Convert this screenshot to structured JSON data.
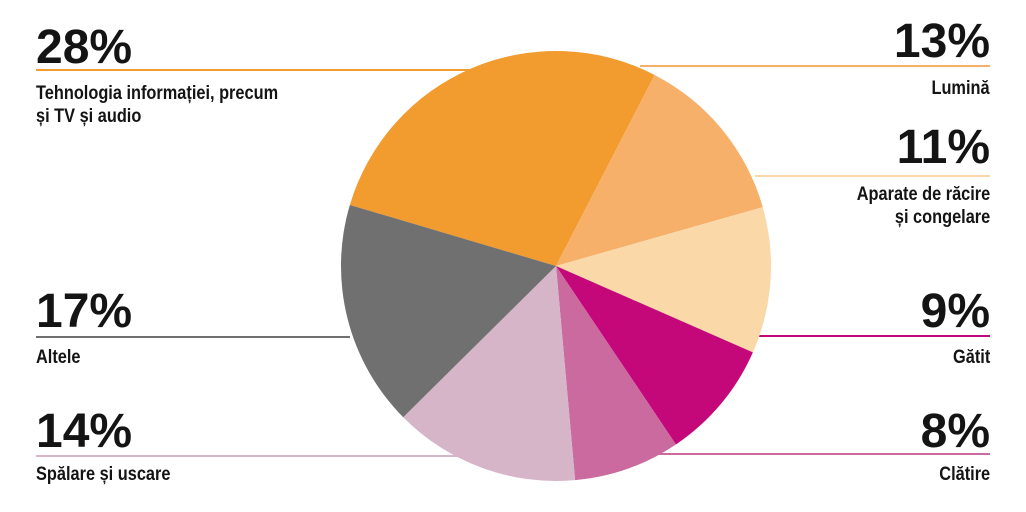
{
  "chart_data": {
    "type": "pie",
    "slices": [
      {
        "label": "Tehnologia informației, precum\nși TV și audio",
        "value": 28,
        "display": "28%",
        "color": "#F29B2E"
      },
      {
        "label": "Lumină",
        "value": 13,
        "display": "13%",
        "color": "#F7B06A"
      },
      {
        "label": "Aparate de răcire\nși congelare",
        "value": 11,
        "display": "11%",
        "color": "#FAD8A8"
      },
      {
        "label": "Gătit",
        "value": 9,
        "display": "9%",
        "color": "#C4087A"
      },
      {
        "label": "Clătire",
        "value": 8,
        "display": "8%",
        "color": "#CB6A9E"
      },
      {
        "label": "Spălare și uscare",
        "value": 14,
        "display": "14%",
        "color": "#D6B5C8"
      },
      {
        "label": "Altele",
        "value": 17,
        "display": "17%",
        "color": "#707070"
      }
    ]
  }
}
